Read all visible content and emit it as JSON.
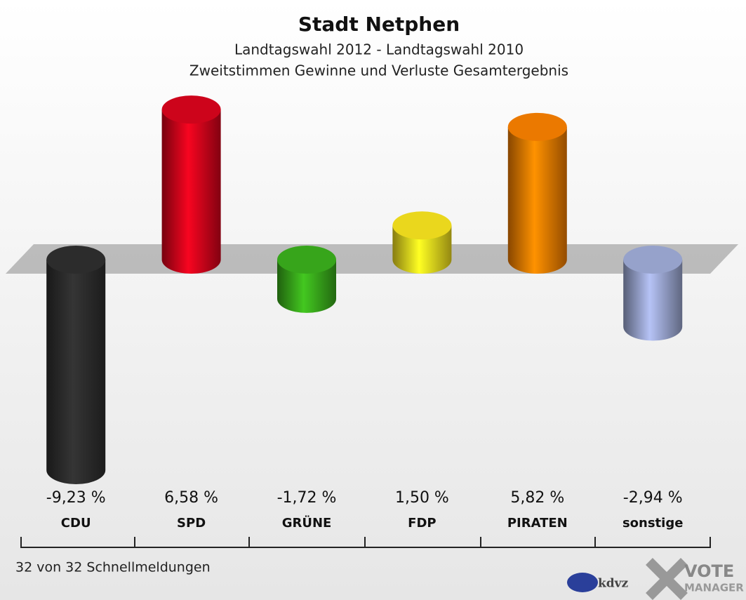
{
  "chart_data": {
    "type": "bar",
    "title": "Stadt Netphen",
    "subtitle": [
      "Landtagswahl 2012 - Landtagswahl 2010",
      "Zweitstimmen Gewinne und Verluste Gesamtergebnis"
    ],
    "categories": [
      "CDU",
      "SPD",
      "GRÜNE",
      "FDP",
      "PIRATEN",
      "sonstige"
    ],
    "values": [
      -9.23,
      6.58,
      -1.72,
      1.5,
      5.82,
      -2.94
    ],
    "value_labels": [
      "-9,23 %",
      "6,58 %",
      "-1,72 %",
      "1,50 %",
      "5,82 %",
      "-2,94 %"
    ],
    "colors": [
      "#2e2e2e",
      "#d8041c",
      "#3aae1c",
      "#f6e21e",
      "#f77f00",
      "#9eaad6"
    ],
    "footer": "32 von 32 Schnellmeldungen",
    "logo": [
      "kdvz",
      "VOTE",
      "MANAGER"
    ]
  }
}
